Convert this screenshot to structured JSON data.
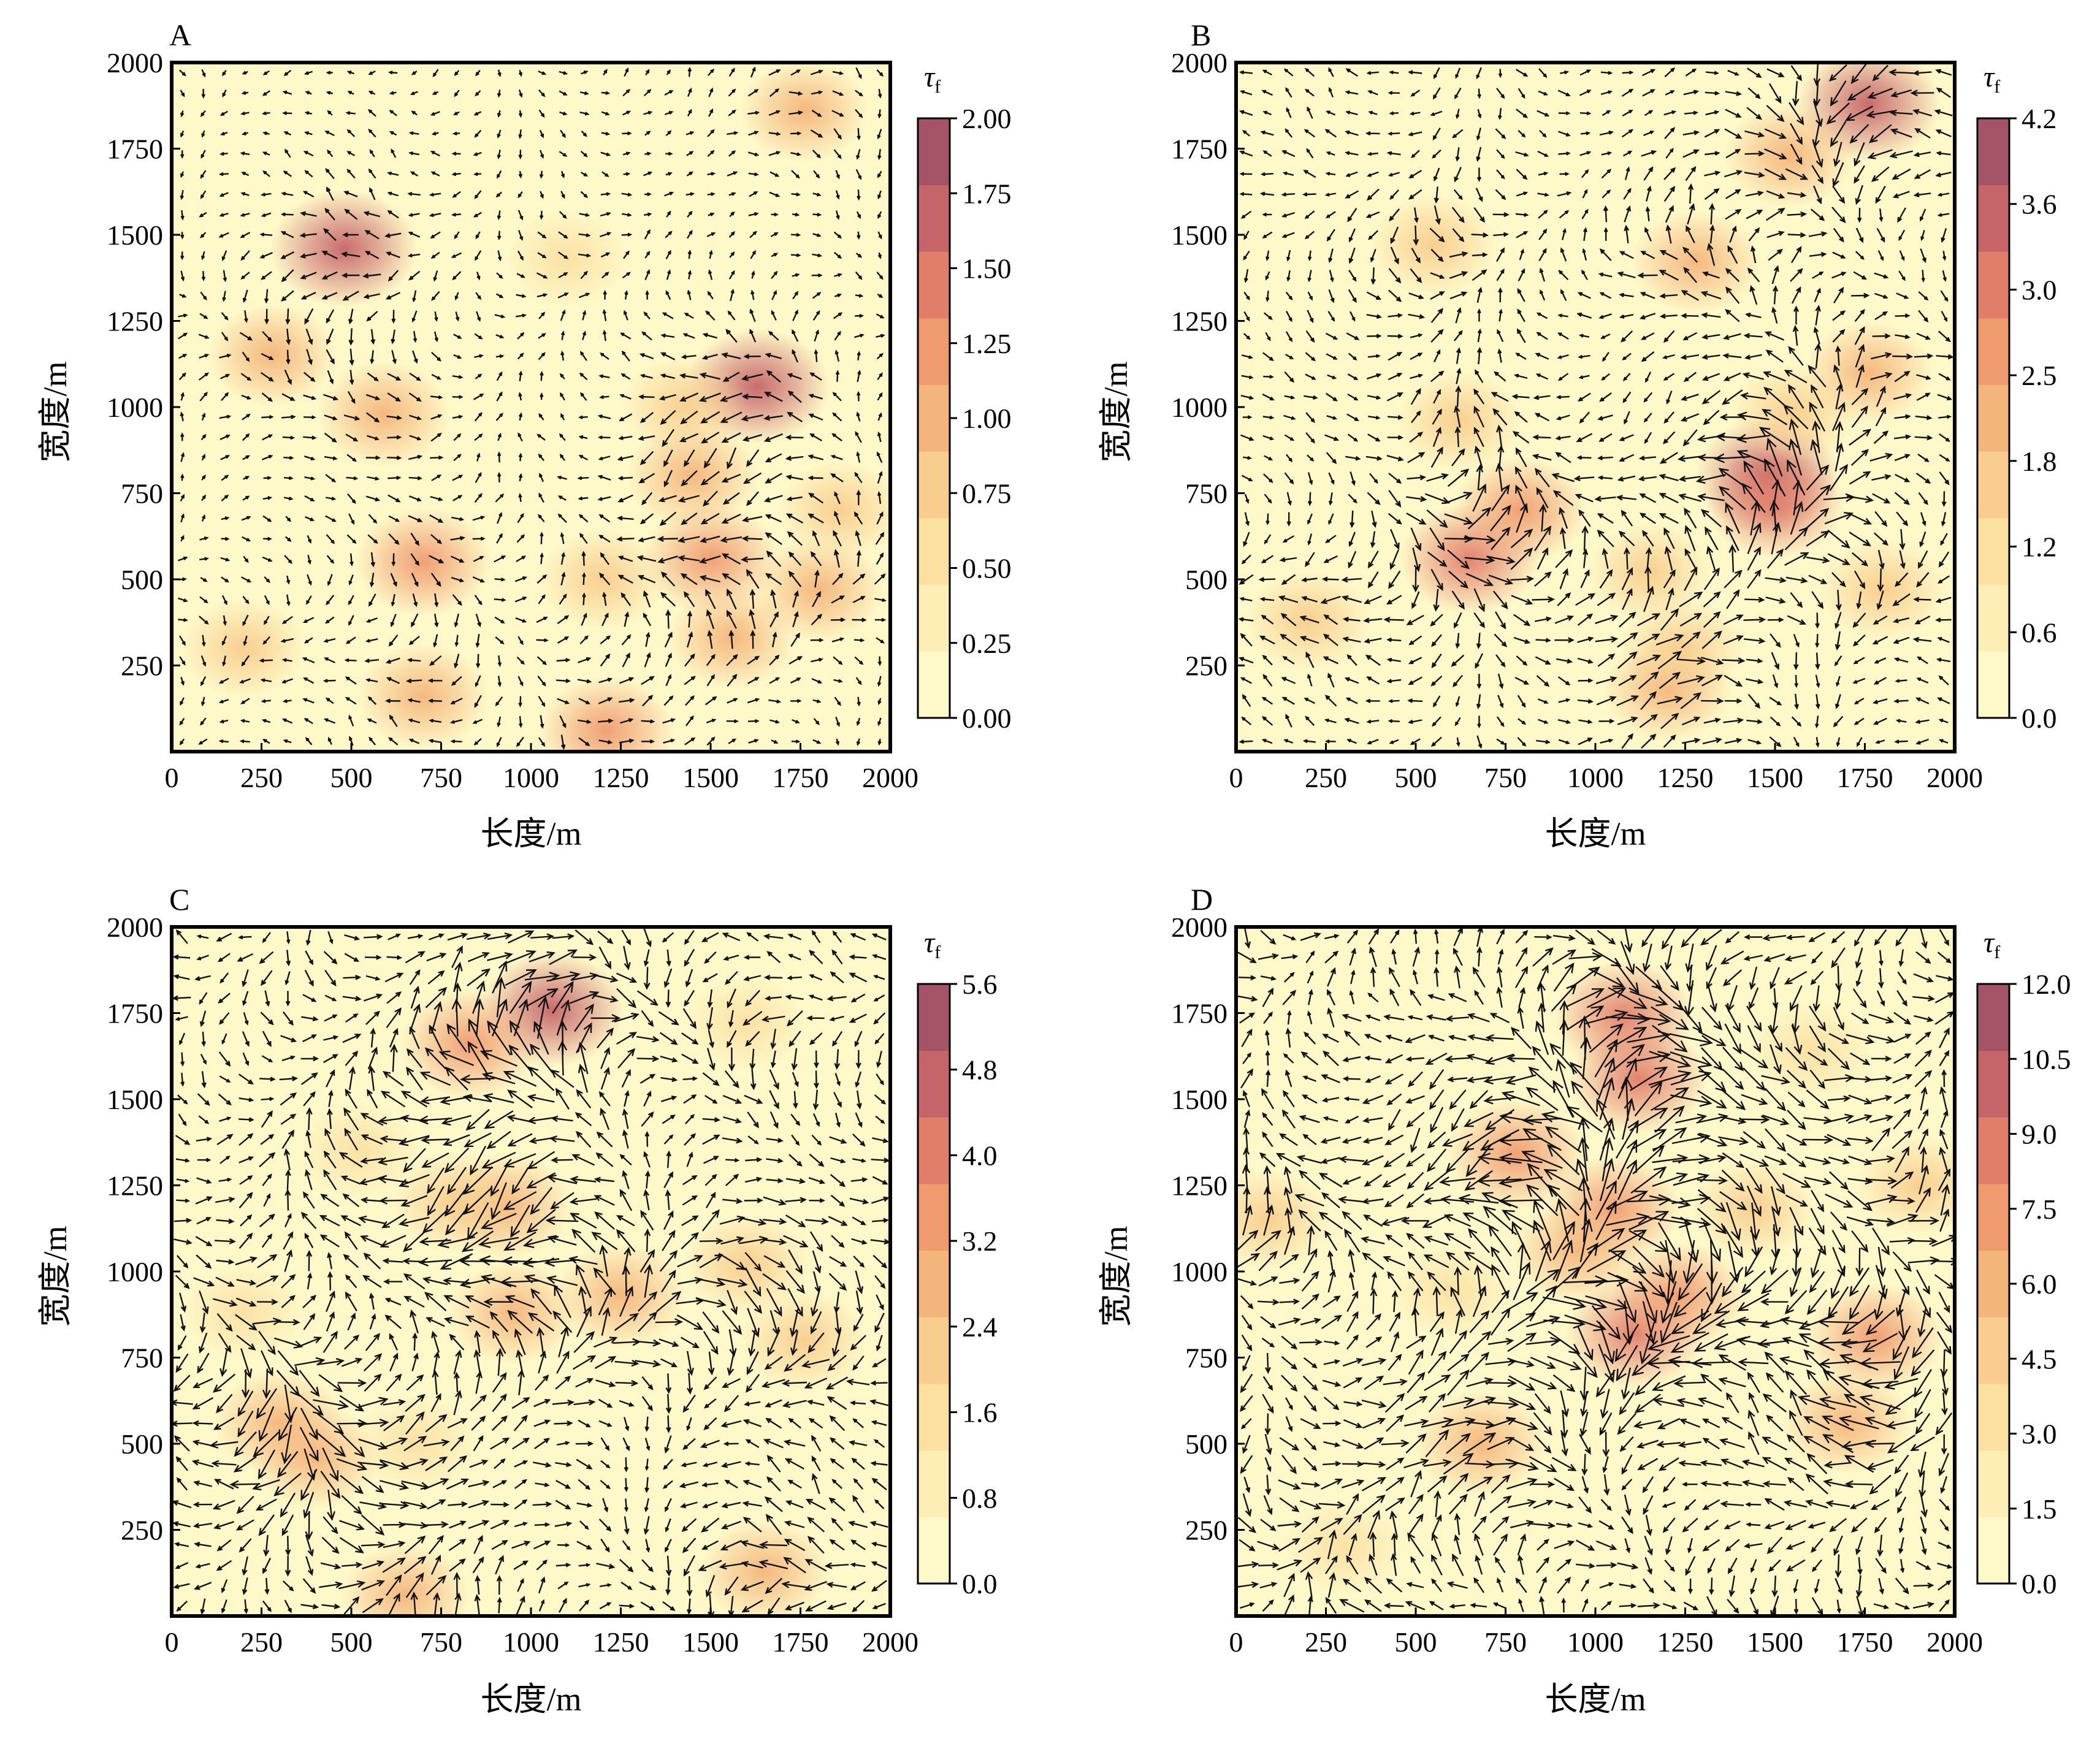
{
  "colors": {
    "cmap": [
      "#fff8c8",
      "#fdeeb5",
      "#fbe0a2",
      "#f8cd8d",
      "#f4b57b",
      "#ef9b6f",
      "#e07e6a",
      "#c56469",
      "#a45466"
    ],
    "arrow": "#111111",
    "axis": "#000000"
  },
  "chart_data": [
    {
      "type": "heatmap",
      "panel": "A",
      "xlabel": "长度/m",
      "ylabel": "宽度/m",
      "xlim": [
        0,
        2000
      ],
      "ylim": [
        0,
        2000
      ],
      "xticks": [
        "0",
        "250",
        "500",
        "750",
        "1000",
        "1250",
        "1500",
        "1750",
        "2000"
      ],
      "yticks": [
        "250",
        "500",
        "750",
        "1000",
        "1250",
        "1500",
        "1750",
        "2000"
      ],
      "colorbar": {
        "label": "τ",
        "label_sub": "f",
        "min": 0,
        "max": 2.0,
        "ticks": [
          "0.00",
          "0.25",
          "0.50",
          "0.75",
          "1.00",
          "1.25",
          "1.50",
          "1.75",
          "2.00"
        ]
      },
      "overlay": "vector field (arrows)",
      "hotspots": [
        {
          "x": 480,
          "y": 1460,
          "v": 1.7
        },
        {
          "x": 1630,
          "y": 1060,
          "v": 1.6
        },
        {
          "x": 590,
          "y": 980,
          "v": 1.1
        },
        {
          "x": 1500,
          "y": 560,
          "v": 1.3
        },
        {
          "x": 1450,
          "y": 800,
          "v": 1.1
        },
        {
          "x": 700,
          "y": 550,
          "v": 1.2
        },
        {
          "x": 1210,
          "y": 60,
          "v": 1.2
        },
        {
          "x": 1800,
          "y": 470,
          "v": 1.0
        },
        {
          "x": 700,
          "y": 160,
          "v": 1.0
        },
        {
          "x": 280,
          "y": 1150,
          "v": 0.9
        },
        {
          "x": 1560,
          "y": 330,
          "v": 0.9
        },
        {
          "x": 1200,
          "y": 500,
          "v": 0.8
        },
        {
          "x": 1760,
          "y": 1860,
          "v": 0.9
        },
        {
          "x": 1430,
          "y": 1000,
          "v": 0.8
        },
        {
          "x": 200,
          "y": 300,
          "v": 0.7
        },
        {
          "x": 1100,
          "y": 1430,
          "v": 0.6
        },
        {
          "x": 1860,
          "y": 700,
          "v": 0.7
        }
      ]
    },
    {
      "type": "heatmap",
      "panel": "B",
      "xlabel": "长度/m",
      "ylabel": "宽度/m",
      "xlim": [
        0,
        2000
      ],
      "ylim": [
        0,
        2000
      ],
      "xticks": [
        "0",
        "250",
        "500",
        "750",
        "1000",
        "1250",
        "1500",
        "1750",
        "2000"
      ],
      "yticks": [
        "250",
        "500",
        "750",
        "1000",
        "1250",
        "1500",
        "1750",
        "2000"
      ],
      "colorbar": {
        "label": "τ",
        "label_sub": "f",
        "min": 0,
        "max": 4.2,
        "ticks": [
          "0.0",
          "0.6",
          "1.2",
          "1.8",
          "2.5",
          "3.0",
          "3.6",
          "4.2"
        ]
      },
      "overlay": "vector field (arrows)",
      "hotspots": [
        {
          "x": 1480,
          "y": 800,
          "v": 3.4
        },
        {
          "x": 1760,
          "y": 1880,
          "v": 3.3
        },
        {
          "x": 650,
          "y": 560,
          "v": 2.9
        },
        {
          "x": 1500,
          "y": 720,
          "v": 2.8
        },
        {
          "x": 790,
          "y": 700,
          "v": 2.4
        },
        {
          "x": 1540,
          "y": 1730,
          "v": 2.1
        },
        {
          "x": 1280,
          "y": 1420,
          "v": 2.0
        },
        {
          "x": 1200,
          "y": 180,
          "v": 2.0
        },
        {
          "x": 1800,
          "y": 470,
          "v": 1.8
        },
        {
          "x": 1760,
          "y": 1100,
          "v": 1.9
        },
        {
          "x": 550,
          "y": 1470,
          "v": 1.6
        },
        {
          "x": 200,
          "y": 380,
          "v": 1.6
        },
        {
          "x": 1240,
          "y": 300,
          "v": 1.6
        },
        {
          "x": 620,
          "y": 960,
          "v": 1.5
        },
        {
          "x": 1550,
          "y": 980,
          "v": 1.5
        },
        {
          "x": 1150,
          "y": 520,
          "v": 1.4
        }
      ]
    },
    {
      "type": "heatmap",
      "panel": "C",
      "xlabel": "长度/m",
      "ylabel": "宽度/m",
      "xlim": [
        0,
        2000
      ],
      "ylim": [
        0,
        2000
      ],
      "xticks": [
        "0",
        "250",
        "500",
        "750",
        "1000",
        "1250",
        "1500",
        "1750",
        "2000"
      ],
      "yticks": [
        "250",
        "500",
        "750",
        "1000",
        "1250",
        "1500",
        "1750",
        "2000"
      ],
      "colorbar": {
        "label": "τ",
        "label_sub": "f",
        "min": 0,
        "max": 5.6,
        "ticks": [
          "0.0",
          "0.8",
          "1.6",
          "2.4",
          "3.2",
          "4.0",
          "4.8",
          "5.6"
        ]
      },
      "overlay": "vector field (arrows)",
      "hotspots": [
        {
          "x": 1060,
          "y": 1760,
          "v": 4.4
        },
        {
          "x": 830,
          "y": 1660,
          "v": 3.6
        },
        {
          "x": 930,
          "y": 1190,
          "v": 3.0
        },
        {
          "x": 1250,
          "y": 930,
          "v": 2.9
        },
        {
          "x": 950,
          "y": 880,
          "v": 2.6
        },
        {
          "x": 300,
          "y": 560,
          "v": 2.8
        },
        {
          "x": 400,
          "y": 460,
          "v": 2.6
        },
        {
          "x": 650,
          "y": 60,
          "v": 2.6
        },
        {
          "x": 1650,
          "y": 130,
          "v": 2.6
        },
        {
          "x": 1600,
          "y": 1020,
          "v": 2.2
        },
        {
          "x": 1760,
          "y": 800,
          "v": 2.2
        },
        {
          "x": 790,
          "y": 1200,
          "v": 2.4
        },
        {
          "x": 680,
          "y": 500,
          "v": 1.8
        },
        {
          "x": 520,
          "y": 1350,
          "v": 1.6
        },
        {
          "x": 200,
          "y": 880,
          "v": 1.6
        },
        {
          "x": 1600,
          "y": 1720,
          "v": 1.4
        }
      ]
    },
    {
      "type": "heatmap",
      "panel": "D",
      "xlabel": "长度/m",
      "ylabel": "宽度/m",
      "xlim": [
        0,
        2000
      ],
      "ylim": [
        0,
        2000
      ],
      "xticks": [
        "0",
        "250",
        "500",
        "750",
        "1000",
        "1250",
        "1500",
        "1750",
        "2000"
      ],
      "yticks": [
        "250",
        "500",
        "750",
        "1000",
        "1250",
        "1500",
        "1750",
        "2000"
      ],
      "colorbar": {
        "label": "τ",
        "label_sub": "f",
        "min": 0,
        "max": 12.0,
        "ticks": [
          "0.0",
          "1.5",
          "3.0",
          "4.5",
          "6.0",
          "7.5",
          "9.0",
          "10.5",
          "12.0"
        ]
      },
      "overlay": "vector field (arrows)",
      "hotspots": [
        {
          "x": 1080,
          "y": 1740,
          "v": 8.5
        },
        {
          "x": 1120,
          "y": 1560,
          "v": 8.0
        },
        {
          "x": 780,
          "y": 1340,
          "v": 7.8
        },
        {
          "x": 1110,
          "y": 820,
          "v": 8.0
        },
        {
          "x": 1050,
          "y": 1180,
          "v": 7.0
        },
        {
          "x": 1230,
          "y": 930,
          "v": 6.8
        },
        {
          "x": 1780,
          "y": 810,
          "v": 7.2
        },
        {
          "x": 680,
          "y": 500,
          "v": 6.5
        },
        {
          "x": 1700,
          "y": 560,
          "v": 5.5
        },
        {
          "x": 950,
          "y": 1060,
          "v": 6.0
        },
        {
          "x": 90,
          "y": 1150,
          "v": 4.5
        },
        {
          "x": 1600,
          "y": 1640,
          "v": 3.8
        },
        {
          "x": 300,
          "y": 200,
          "v": 3.5
        },
        {
          "x": 1440,
          "y": 1180,
          "v": 4.0
        },
        {
          "x": 600,
          "y": 940,
          "v": 3.0
        },
        {
          "x": 1900,
          "y": 1250,
          "v": 4.0
        }
      ]
    }
  ]
}
